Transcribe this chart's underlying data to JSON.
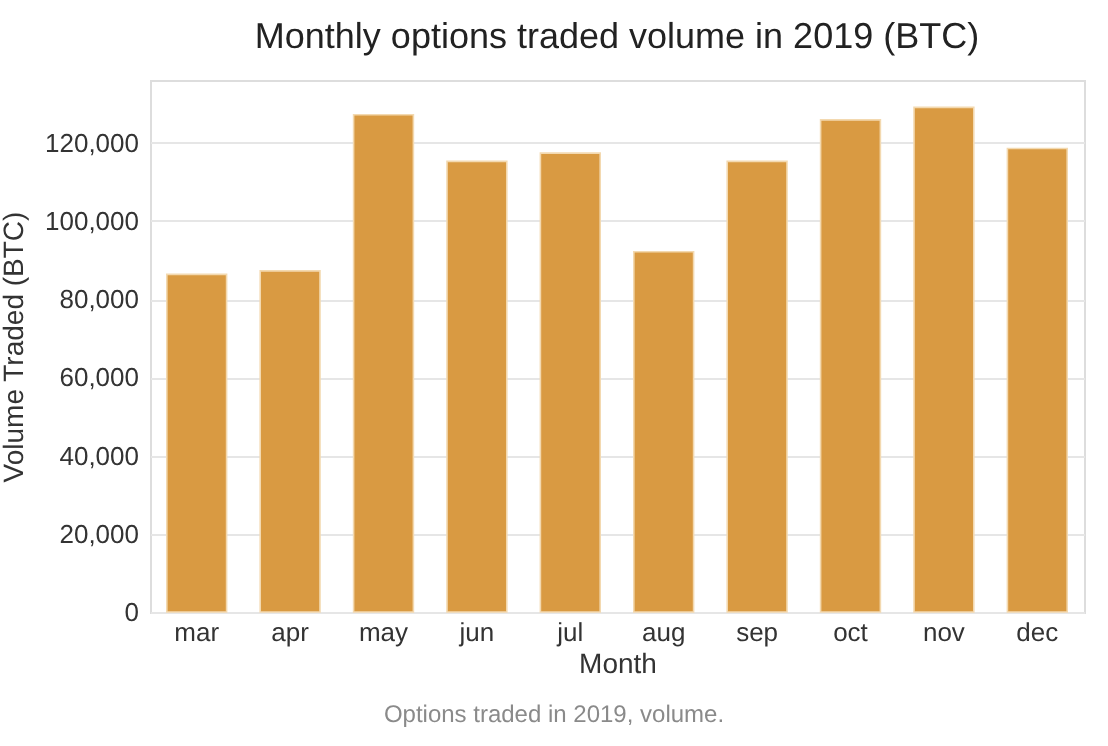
{
  "chart_data": {
    "type": "bar",
    "title": "Monthly options traded volume in 2019 (BTC)",
    "xlabel": "Month",
    "ylabel": "Volume Traded (BTC)",
    "categories": [
      "mar",
      "apr",
      "may",
      "jun",
      "jul",
      "aug",
      "sep",
      "oct",
      "nov",
      "dec"
    ],
    "values": [
      86300,
      87200,
      127100,
      115200,
      117300,
      92100,
      115200,
      125800,
      129000,
      118500
    ],
    "color": "#d99a42",
    "ylim": [
      0,
      136000
    ],
    "yticks": [
      0,
      {
        "value": 20000,
        "label": "20,000"
      },
      {
        "value": 40000,
        "label": "40,000"
      },
      {
        "value": 60000,
        "label": "60,000"
      },
      {
        "value": 80000,
        "label": "80,000"
      },
      {
        "value": 100000,
        "label": "100,000"
      },
      {
        "value": 120000,
        "label": "120,000"
      }
    ],
    "grid": "y",
    "annotations": [
      "Options traded in 2019, volume."
    ]
  }
}
